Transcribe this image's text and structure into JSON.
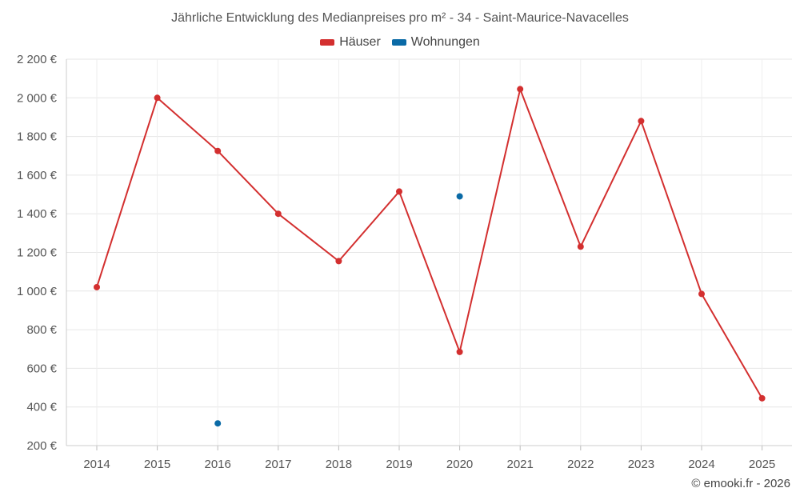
{
  "chart_data": {
    "type": "line",
    "title": "Jährliche Entwicklung des Medianpreises pro m² - 34 - Saint-Maurice-Navacelles",
    "categories": [
      "2014",
      "2015",
      "2016",
      "2017",
      "2018",
      "2019",
      "2020",
      "2021",
      "2022",
      "2023",
      "2024",
      "2025"
    ],
    "series": [
      {
        "name": "Häuser",
        "color": "#d32f2f",
        "values": [
          1020,
          2000,
          1725,
          1400,
          1155,
          1515,
          685,
          2045,
          1230,
          1880,
          985,
          445
        ]
      },
      {
        "name": "Wohnungen",
        "color": "#0a6aa6",
        "values": [
          null,
          null,
          315,
          null,
          null,
          null,
          1490,
          null,
          null,
          null,
          null,
          null
        ]
      }
    ],
    "ylim": [
      200,
      2200
    ],
    "yticks": [
      200,
      400,
      600,
      800,
      1000,
      1200,
      1400,
      1600,
      1800,
      2000,
      2200
    ],
    "ytick_labels": [
      "200 €",
      "400 €",
      "600 €",
      "800 €",
      "1 000 €",
      "1 200 €",
      "1 400 €",
      "1 600 €",
      "1 800 €",
      "2 000 €",
      "2 200 €"
    ],
    "grid": true,
    "legend_position": "top-center"
  },
  "credit": "© emooki.fr - 2026"
}
